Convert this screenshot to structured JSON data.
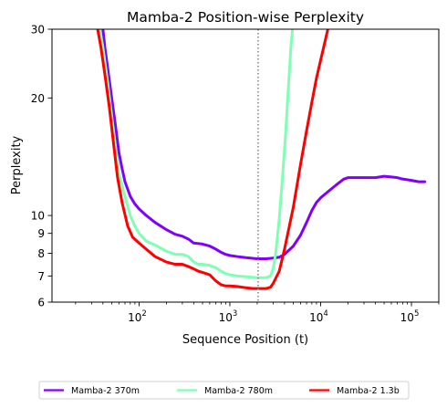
{
  "chart_data": {
    "type": "line",
    "title": "Mamba-2 Position-wise Perplexity",
    "xlabel": "Sequence Position (t)",
    "ylabel": "Perplexity",
    "x_scale": "log",
    "y_scale": "log",
    "xlim": [
      11,
      200000
    ],
    "ylim": [
      6,
      30
    ],
    "x_ticks": [
      {
        "value": 100,
        "base": "10",
        "exp": "2"
      },
      {
        "value": 1000,
        "base": "10",
        "exp": "3"
      },
      {
        "value": 10000,
        "base": "10",
        "exp": "4"
      },
      {
        "value": 100000,
        "base": "10",
        "exp": "5"
      }
    ],
    "y_ticks": [
      {
        "value": 6,
        "label": "6"
      },
      {
        "value": 7,
        "label": "7"
      },
      {
        "value": 8,
        "label": "8"
      },
      {
        "value": 9,
        "label": "9"
      },
      {
        "value": 10,
        "label": "10"
      },
      {
        "value": 20,
        "label": "20"
      },
      {
        "value": 30,
        "label": "30"
      }
    ],
    "reference_line": {
      "x": 2048,
      "style": "dotted",
      "color": "#808080"
    },
    "legend_position": "bottom-center",
    "series": [
      {
        "name": "Mamba-2 370m",
        "color": "#7f00ff",
        "points": [
          [
            40,
            30
          ],
          [
            42,
            27
          ],
          [
            45,
            24
          ],
          [
            50,
            20
          ],
          [
            55,
            17
          ],
          [
            60,
            14.5
          ],
          [
            65,
            13.2
          ],
          [
            70,
            12.2
          ],
          [
            80,
            11.2
          ],
          [
            90,
            10.7
          ],
          [
            100,
            10.4
          ],
          [
            120,
            10
          ],
          [
            150,
            9.6
          ],
          [
            200,
            9.2
          ],
          [
            250,
            8.95
          ],
          [
            300,
            8.85
          ],
          [
            350,
            8.7
          ],
          [
            400,
            8.5
          ],
          [
            500,
            8.45
          ],
          [
            600,
            8.35
          ],
          [
            700,
            8.2
          ],
          [
            800,
            8.05
          ],
          [
            900,
            7.95
          ],
          [
            1000,
            7.9
          ],
          [
            1200,
            7.85
          ],
          [
            1500,
            7.8
          ],
          [
            2000,
            7.75
          ],
          [
            2500,
            7.75
          ],
          [
            3000,
            7.78
          ],
          [
            3500,
            7.82
          ],
          [
            4000,
            7.95
          ],
          [
            5000,
            8.35
          ],
          [
            6000,
            8.9
          ],
          [
            7000,
            9.6
          ],
          [
            8000,
            10.3
          ],
          [
            9000,
            10.8
          ],
          [
            10000,
            11.1
          ],
          [
            12000,
            11.5
          ],
          [
            15000,
            12.0
          ],
          [
            18000,
            12.4
          ],
          [
            20000,
            12.5
          ],
          [
            25000,
            12.5
          ],
          [
            30000,
            12.5
          ],
          [
            40000,
            12.5
          ],
          [
            50000,
            12.6
          ],
          [
            60000,
            12.55
          ],
          [
            70000,
            12.5
          ],
          [
            80000,
            12.4
          ],
          [
            100000,
            12.3
          ],
          [
            120000,
            12.2
          ],
          [
            140000,
            12.2
          ]
        ]
      },
      {
        "name": "Mamba-2 780m",
        "color": "#80ffb4",
        "points": [
          [
            37,
            30
          ],
          [
            40,
            27
          ],
          [
            45,
            22
          ],
          [
            50,
            18
          ],
          [
            55,
            15
          ],
          [
            60,
            12.8
          ],
          [
            70,
            11.2
          ],
          [
            80,
            10
          ],
          [
            90,
            9.4
          ],
          [
            100,
            9
          ],
          [
            120,
            8.6
          ],
          [
            150,
            8.4
          ],
          [
            200,
            8.1
          ],
          [
            250,
            7.95
          ],
          [
            300,
            7.95
          ],
          [
            350,
            7.85
          ],
          [
            400,
            7.6
          ],
          [
            450,
            7.5
          ],
          [
            500,
            7.5
          ],
          [
            600,
            7.45
          ],
          [
            700,
            7.35
          ],
          [
            800,
            7.2
          ],
          [
            900,
            7.1
          ],
          [
            1000,
            7.05
          ],
          [
            1200,
            7.0
          ],
          [
            1500,
            6.97
          ],
          [
            2000,
            6.93
          ],
          [
            2500,
            6.93
          ],
          [
            2800,
            7.0
          ],
          [
            3000,
            7.3
          ],
          [
            3200,
            8.0
          ],
          [
            3500,
            9.8
          ],
          [
            3800,
            12.5
          ],
          [
            4100,
            16
          ],
          [
            4400,
            21
          ],
          [
            4700,
            27
          ],
          [
            4900,
            30
          ]
        ]
      },
      {
        "name": "Mamba-2 1.3b",
        "color": "#ff0000",
        "points": [
          [
            35,
            30
          ],
          [
            38,
            27
          ],
          [
            42,
            23
          ],
          [
            47,
            19
          ],
          [
            52,
            15.5
          ],
          [
            58,
            12.5
          ],
          [
            65,
            10.8
          ],
          [
            75,
            9.4
          ],
          [
            85,
            8.8
          ],
          [
            100,
            8.5
          ],
          [
            120,
            8.2
          ],
          [
            150,
            7.85
          ],
          [
            200,
            7.6
          ],
          [
            250,
            7.5
          ],
          [
            300,
            7.5
          ],
          [
            350,
            7.4
          ],
          [
            400,
            7.3
          ],
          [
            450,
            7.2
          ],
          [
            500,
            7.15
          ],
          [
            600,
            7.05
          ],
          [
            700,
            6.8
          ],
          [
            800,
            6.65
          ],
          [
            900,
            6.6
          ],
          [
            1000,
            6.6
          ],
          [
            1200,
            6.58
          ],
          [
            1500,
            6.53
          ],
          [
            1800,
            6.5
          ],
          [
            2000,
            6.5
          ],
          [
            2500,
            6.5
          ],
          [
            2800,
            6.55
          ],
          [
            3000,
            6.7
          ],
          [
            3500,
            7.2
          ],
          [
            4000,
            8.2
          ],
          [
            5000,
            10.5
          ],
          [
            6000,
            13.5
          ],
          [
            7000,
            16.5
          ],
          [
            8000,
            19.5
          ],
          [
            9000,
            22.5
          ],
          [
            10000,
            25
          ],
          [
            11000,
            27.5
          ],
          [
            12000,
            30
          ]
        ]
      }
    ]
  }
}
